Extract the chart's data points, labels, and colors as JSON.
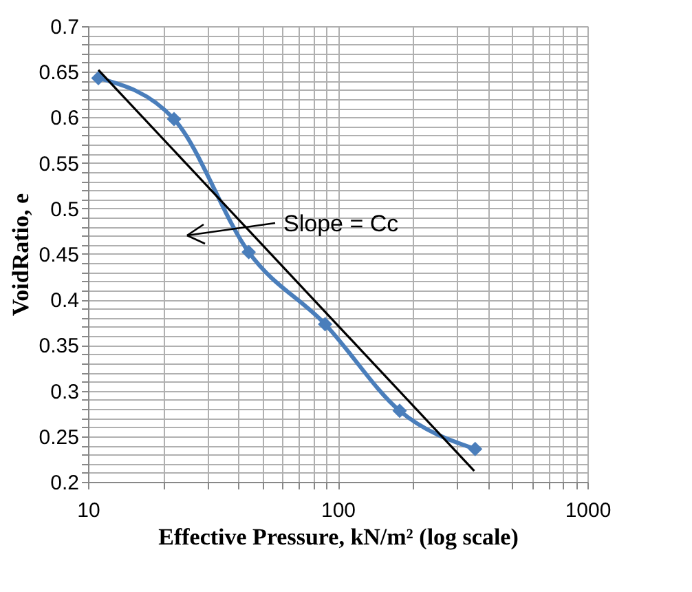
{
  "chart_data": {
    "type": "line",
    "xlabel": "Effective Pressure, kN/m² (log scale)",
    "ylabel": "VoidRatio, e",
    "series": [
      {
        "color": "#4a7ebb",
        "x": [
          11.0,
          22.1,
          44,
          89,
          177,
          355
        ],
        "values": [
          0.643,
          0.598,
          0.452,
          0.373,
          0.278,
          0.236
        ],
        "marker": "diamond"
      },
      {
        "color": "#000000",
        "x": [
          11.0,
          352
        ],
        "values": [
          0.652,
          0.212
        ],
        "marker": "none"
      }
    ],
    "log": "x",
    "xlim": [
      10,
      1000
    ],
    "xticks": [
      10,
      {
        "value": 20,
        "label": null
      },
      {
        "value": 30,
        "label": null
      },
      {
        "value": 40,
        "label": null
      },
      {
        "value": 50,
        "label": null
      },
      {
        "value": 60,
        "label": null
      },
      {
        "value": 70,
        "label": null
      },
      {
        "value": 80,
        "label": null
      },
      {
        "value": 90,
        "label": null
      },
      100,
      {
        "value": 200,
        "label": null
      },
      {
        "value": 300,
        "label": null
      },
      {
        "value": 400,
        "label": null
      },
      {
        "value": 500,
        "label": null
      },
      {
        "value": 600,
        "label": null
      },
      {
        "value": 700,
        "label": null
      },
      {
        "value": 800,
        "label": null
      },
      {
        "value": 900,
        "label": null
      },
      1000
    ],
    "ylim": [
      0.2,
      0.7
    ],
    "yticks": [
      0.2,
      {
        "value": 0.21,
        "label": null
      },
      {
        "value": 0.22,
        "label": null
      },
      {
        "value": 0.23,
        "label": null
      },
      {
        "value": 0.24,
        "label": null
      },
      0.25,
      {
        "value": 0.26,
        "label": null
      },
      {
        "value": 0.27,
        "label": null
      },
      {
        "value": 0.28,
        "label": null
      },
      {
        "value": 0.29,
        "label": null
      },
      0.3,
      {
        "value": 0.31,
        "label": null
      },
      {
        "value": 0.32,
        "label": null
      },
      {
        "value": 0.33,
        "label": null
      },
      {
        "value": 0.34,
        "label": null
      },
      0.35,
      {
        "value": 0.36,
        "label": null
      },
      {
        "value": 0.37,
        "label": null
      },
      {
        "value": 0.38,
        "label": null
      },
      {
        "value": 0.39,
        "label": null
      },
      0.4,
      {
        "value": 0.41,
        "label": null
      },
      {
        "value": 0.42,
        "label": null
      },
      {
        "value": 0.43,
        "label": null
      },
      {
        "value": 0.44,
        "label": null
      },
      0.45,
      {
        "value": 0.46,
        "label": null
      },
      {
        "value": 0.47,
        "label": null
      },
      {
        "value": 0.48,
        "label": null
      },
      {
        "value": 0.49,
        "label": null
      },
      0.5,
      {
        "value": 0.51,
        "label": null
      },
      {
        "value": 0.52,
        "label": null
      },
      {
        "value": 0.53,
        "label": null
      },
      {
        "value": 0.54,
        "label": null
      },
      0.55,
      {
        "value": 0.56,
        "label": null
      },
      {
        "value": 0.57,
        "label": null
      },
      {
        "value": 0.58,
        "label": null
      },
      {
        "value": 0.59,
        "label": null
      },
      0.6,
      {
        "value": 0.61,
        "label": null
      },
      {
        "value": 0.62,
        "label": null
      },
      {
        "value": 0.63,
        "label": null
      },
      {
        "value": 0.64,
        "label": null
      },
      0.65,
      {
        "value": 0.66,
        "label": null
      },
      {
        "value": 0.67,
        "label": null
      },
      {
        "value": 0.68,
        "label": null
      },
      {
        "value": 0.69,
        "label": null
      },
      0.7
    ],
    "grid": true,
    "line_style": "solid",
    "annotations": [
      "Slope = Cc"
    ]
  }
}
